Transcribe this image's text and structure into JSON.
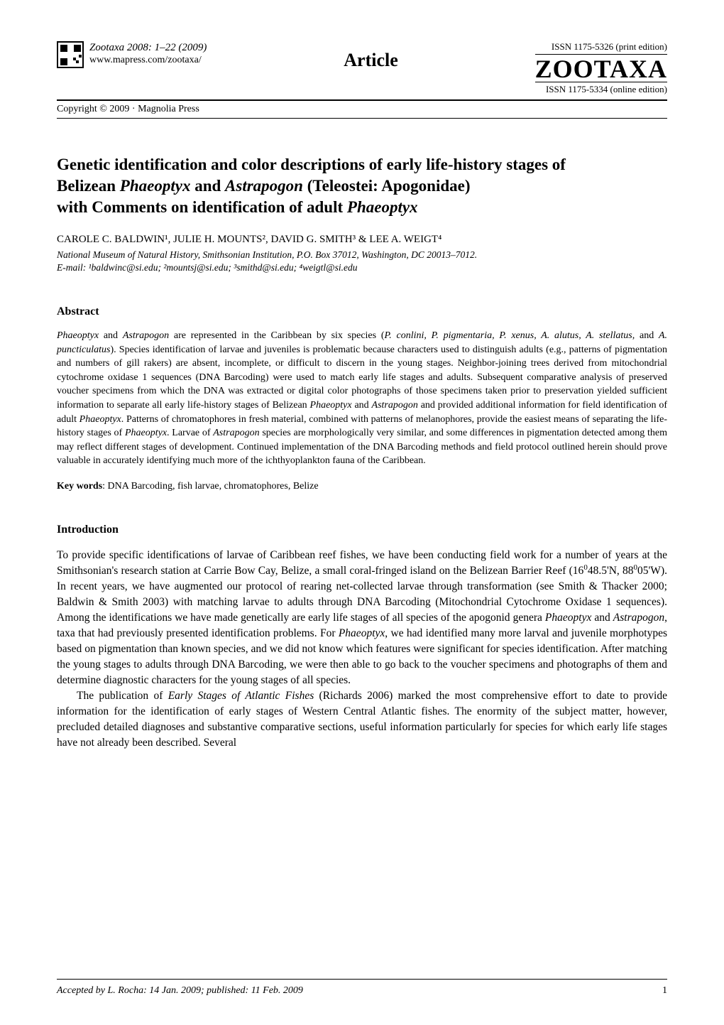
{
  "header": {
    "journal_line": "Zootaxa 2008: 1–22    (2009)",
    "url": "www.mapress.com/zootaxa/",
    "copyright": "Copyright © 2009  ·  Magnolia Press",
    "article_label": "Article",
    "issn_print": "ISSN 1175-5326  (print edition)",
    "zootaxa_logo": "ZOOTAXA",
    "issn_online": "ISSN 1175-5334 (online edition)"
  },
  "title": {
    "line1_a": "Genetic identification and color descriptions of early life-history stages of",
    "line2_a": "Belizean ",
    "line2_b_italic": "Phaeoptyx",
    "line2_c": " and ",
    "line2_d_italic": "Astrapogon",
    "line2_e": " (Teleostei: Apogonidae)",
    "line3_a": "with Comments on identification of adult ",
    "line3_b_italic": "Phaeoptyx"
  },
  "authors": "CAROLE C. BALDWIN¹, JULIE H. MOUNTS², DAVID G. SMITH³ & LEE A. WEIGT⁴",
  "affiliation": {
    "line1": "National Museum of Natural History, Smithsonian Institution, P.O. Box 37012, Washington, DC 20013–7012.",
    "line2": "E-mail: ¹baldwinc@si.edu; ²mountsj@si.edu; ³smithd@si.edu; ⁴weigtl@si.edu"
  },
  "abstract": {
    "heading": "Abstract",
    "body_parts": [
      {
        "t": "italic",
        "v": "Phaeoptyx"
      },
      {
        "t": "text",
        "v": " and "
      },
      {
        "t": "italic",
        "v": "Astrapogon"
      },
      {
        "t": "text",
        "v": " are represented in the Caribbean by six species ("
      },
      {
        "t": "italic",
        "v": "P. conlini, P. pigmentaria, P. xenus, A. alutus, A. stellatus,"
      },
      {
        "t": "text",
        "v": " and "
      },
      {
        "t": "italic",
        "v": "A. puncticulatus"
      },
      {
        "t": "text",
        "v": "). Species identification of larvae and juveniles is problematic because characters used to distinguish adults (e.g., patterns of pigmentation and numbers of gill rakers) are absent, incomplete, or difficult to discern in the young stages. Neighbor-joining trees derived from mitochondrial cytochrome oxidase 1 sequences (DNA Barcoding) were used to match early life stages and adults. Subsequent comparative analysis of preserved voucher specimens from which the DNA was extracted or digital color photographs of those specimens taken prior to preservation yielded sufficient information to separate all early life-history stages of Belizean "
      },
      {
        "t": "italic",
        "v": "Phaeoptyx"
      },
      {
        "t": "text",
        "v": " and "
      },
      {
        "t": "italic",
        "v": "Astrapogon"
      },
      {
        "t": "text",
        "v": " and provided additional information for field identification of adult "
      },
      {
        "t": "italic",
        "v": "Phaeoptyx"
      },
      {
        "t": "text",
        "v": ". Patterns of chromatophores in fresh material, combined with patterns of melanophores, provide the easiest means of separating the life-history stages of "
      },
      {
        "t": "italic",
        "v": "Phaeoptyx"
      },
      {
        "t": "text",
        "v": ". Larvae of "
      },
      {
        "t": "italic",
        "v": "Astrapogon"
      },
      {
        "t": "text",
        "v": " species are morphologically very similar, and some differences in pigmentation detected among them may reflect different stages of development. Continued implementation of the DNA Barcoding methods and field protocol outlined herein should prove valuable in accurately identifying much more of the ichthyoplankton fauna of the Caribbean."
      }
    ]
  },
  "keywords": {
    "label": "Key words",
    "text": ": DNA Barcoding, fish larvae, chromatophores, Belize"
  },
  "introduction": {
    "heading": "Introduction",
    "p1_parts": [
      {
        "t": "text",
        "v": "To provide specific identifications of larvae of Caribbean reef fishes, we have been conducting field work for a number of years at the Smithsonian's research station at Carrie Bow Cay, Belize, a small coral-fringed island on the Belizean Barrier Reef (16"
      },
      {
        "t": "sup",
        "v": "0"
      },
      {
        "t": "text",
        "v": "48.5'N, 88"
      },
      {
        "t": "sup",
        "v": "0"
      },
      {
        "t": "text",
        "v": "05'W). In recent years, we have augmented our protocol of rearing net-collected larvae through transformation (see Smith & Thacker 2000; Baldwin & Smith 2003) with matching larvae to adults through DNA Barcoding (Mitochondrial Cytochrome Oxidase 1 sequences). Among the identifications we have made genetically are early life stages of all species of the apogonid genera "
      },
      {
        "t": "italic",
        "v": "Phaeoptyx"
      },
      {
        "t": "text",
        "v": " and "
      },
      {
        "t": "italic",
        "v": "Astrapogon"
      },
      {
        "t": "text",
        "v": ", taxa that had previously presented identification problems. For "
      },
      {
        "t": "italic",
        "v": "Phaeoptyx"
      },
      {
        "t": "text",
        "v": ", we had identified many more larval and juvenile morphotypes based on pigmentation than known species, and we did not know which features were significant for species identification. After matching the young stages to adults through DNA Barcoding, we were then able to go back to the voucher specimens and photographs of them and determine diagnostic characters for the young stages of all species."
      }
    ],
    "p2_parts": [
      {
        "t": "text",
        "v": "The publication of "
      },
      {
        "t": "italic",
        "v": "Early Stages of Atlantic Fishes"
      },
      {
        "t": "text",
        "v": " (Richards 2006) marked the most comprehensive effort to date to provide information for the identification of early stages of Western Central Atlantic fishes. The enormity of the subject matter, however, precluded detailed diagnoses and substantive comparative sections, useful information particularly for species for which early life stages have not already been described. Several"
      }
    ]
  },
  "footer": {
    "accepted": "Accepted by L. Rocha: 14 Jan. 2009; published: 11 Feb. 2009",
    "page": "1"
  }
}
